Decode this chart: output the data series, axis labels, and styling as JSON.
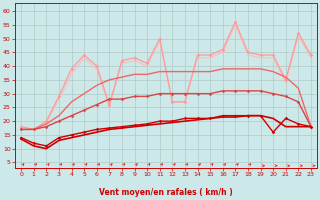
{
  "background_color": "#cde8e8",
  "grid_color": "#b0c8c8",
  "xlabel": "Vent moyen/en rafales ( km/h )",
  "xlabel_color": "#cc0000",
  "ylabel_ticks": [
    5,
    10,
    15,
    20,
    25,
    30,
    35,
    40,
    45,
    50,
    55,
    60
  ],
  "xlim": [
    -0.5,
    23.5
  ],
  "ylim": [
    3,
    63
  ],
  "x": [
    0,
    1,
    2,
    3,
    4,
    5,
    6,
    7,
    8,
    9,
    10,
    11,
    12,
    13,
    14,
    15,
    16,
    17,
    18,
    19,
    20,
    21,
    22,
    23
  ],
  "series": [
    {
      "label": "line1_smooth",
      "y": [
        13.5,
        11,
        10,
        13,
        14,
        15,
        16,
        17,
        17.5,
        18,
        18.5,
        19,
        19.5,
        20,
        20.5,
        21,
        21.5,
        21.5,
        22,
        22,
        21,
        18,
        18,
        18
      ],
      "color": "#cc0000",
      "lw": 1.2,
      "marker": null,
      "ms": 0,
      "zorder": 5
    },
    {
      "label": "line2_smooth",
      "y": [
        14,
        12,
        11,
        14,
        15,
        16,
        17,
        17.5,
        18,
        18.5,
        19,
        20,
        20,
        21,
        21,
        21,
        22,
        22,
        22,
        22,
        16,
        21,
        19,
        18
      ],
      "color": "#cc0000",
      "lw": 1.0,
      "marker": "D",
      "ms": 1.8,
      "zorder": 5
    },
    {
      "label": "line3_medium",
      "y": [
        17,
        17,
        18,
        20,
        22,
        24,
        26,
        28,
        28,
        29,
        29,
        30,
        30,
        30,
        30,
        30,
        31,
        31,
        31,
        31,
        30,
        29,
        27,
        18
      ],
      "color": "#dd4444",
      "lw": 1.0,
      "marker": "D",
      "ms": 1.8,
      "zorder": 4
    },
    {
      "label": "line4_upper_smooth",
      "y": [
        17,
        17,
        19,
        22,
        27,
        30,
        33,
        35,
        36,
        37,
        37,
        38,
        38,
        38,
        38,
        38,
        39,
        39,
        39,
        39,
        38,
        36,
        32,
        18
      ],
      "color": "#ee6666",
      "lw": 1.0,
      "marker": null,
      "ms": 0,
      "zorder": 3
    },
    {
      "label": "line5_jagged_pink",
      "y": [
        18,
        17,
        20,
        29,
        39,
        44,
        40,
        26,
        42,
        43,
        41,
        50,
        27,
        27,
        44,
        44,
        46,
        56,
        45,
        44,
        44,
        35,
        52,
        44
      ],
      "color": "#ff9999",
      "lw": 0.9,
      "marker": "D",
      "ms": 1.8,
      "zorder": 2
    },
    {
      "label": "line6_lightest",
      "y": [
        17,
        17,
        19,
        28,
        37,
        43,
        39,
        25,
        41,
        42,
        40,
        49,
        27,
        27,
        43,
        43,
        45,
        55,
        44,
        43,
        43,
        34,
        51,
        43
      ],
      "color": "#ffbbbb",
      "lw": 0.8,
      "marker": null,
      "ms": 0,
      "zorder": 1
    }
  ],
  "arrows_color": "#dd2222",
  "arrow_count": 24
}
